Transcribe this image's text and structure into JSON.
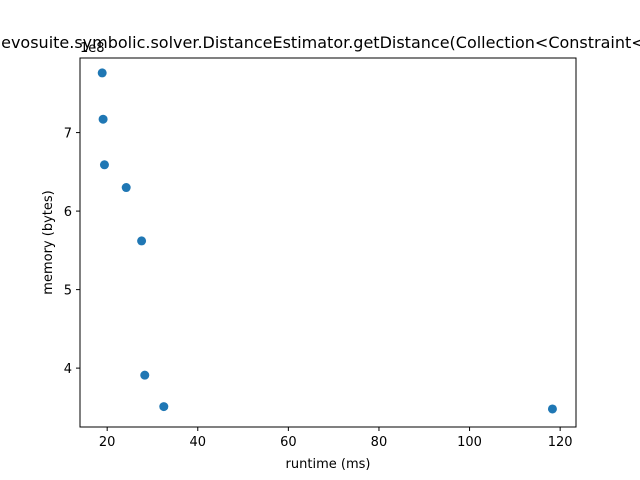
{
  "chart_data": {
    "type": "scatter",
    "title": "org.evosuite.symbolic.solver.DistanceEstimator.getDistance(Collection<Constraint<?>>)",
    "xlabel": "runtime (ms)",
    "ylabel": "memory (bytes)",
    "y_offset_label": "1e8",
    "xlim": [
      14,
      123.5
    ],
    "ylim": [
      3.25,
      7.95
    ],
    "x_ticks": [
      20,
      40,
      60,
      80,
      100,
      120
    ],
    "x_tick_labels": [
      "20",
      "40",
      "60",
      "80",
      "100",
      "120"
    ],
    "y_ticks": [
      4,
      5,
      6,
      7
    ],
    "y_tick_labels": [
      "4",
      "5",
      "6",
      "7"
    ],
    "grid": false,
    "marker_color": "#1f77b4",
    "points": [
      {
        "x": 18.9,
        "y": 7.76
      },
      {
        "x": 19.1,
        "y": 7.17
      },
      {
        "x": 19.4,
        "y": 6.59
      },
      {
        "x": 24.2,
        "y": 6.3
      },
      {
        "x": 27.6,
        "y": 5.62
      },
      {
        "x": 28.3,
        "y": 3.91
      },
      {
        "x": 32.5,
        "y": 3.51
      },
      {
        "x": 118.3,
        "y": 3.48
      }
    ]
  }
}
